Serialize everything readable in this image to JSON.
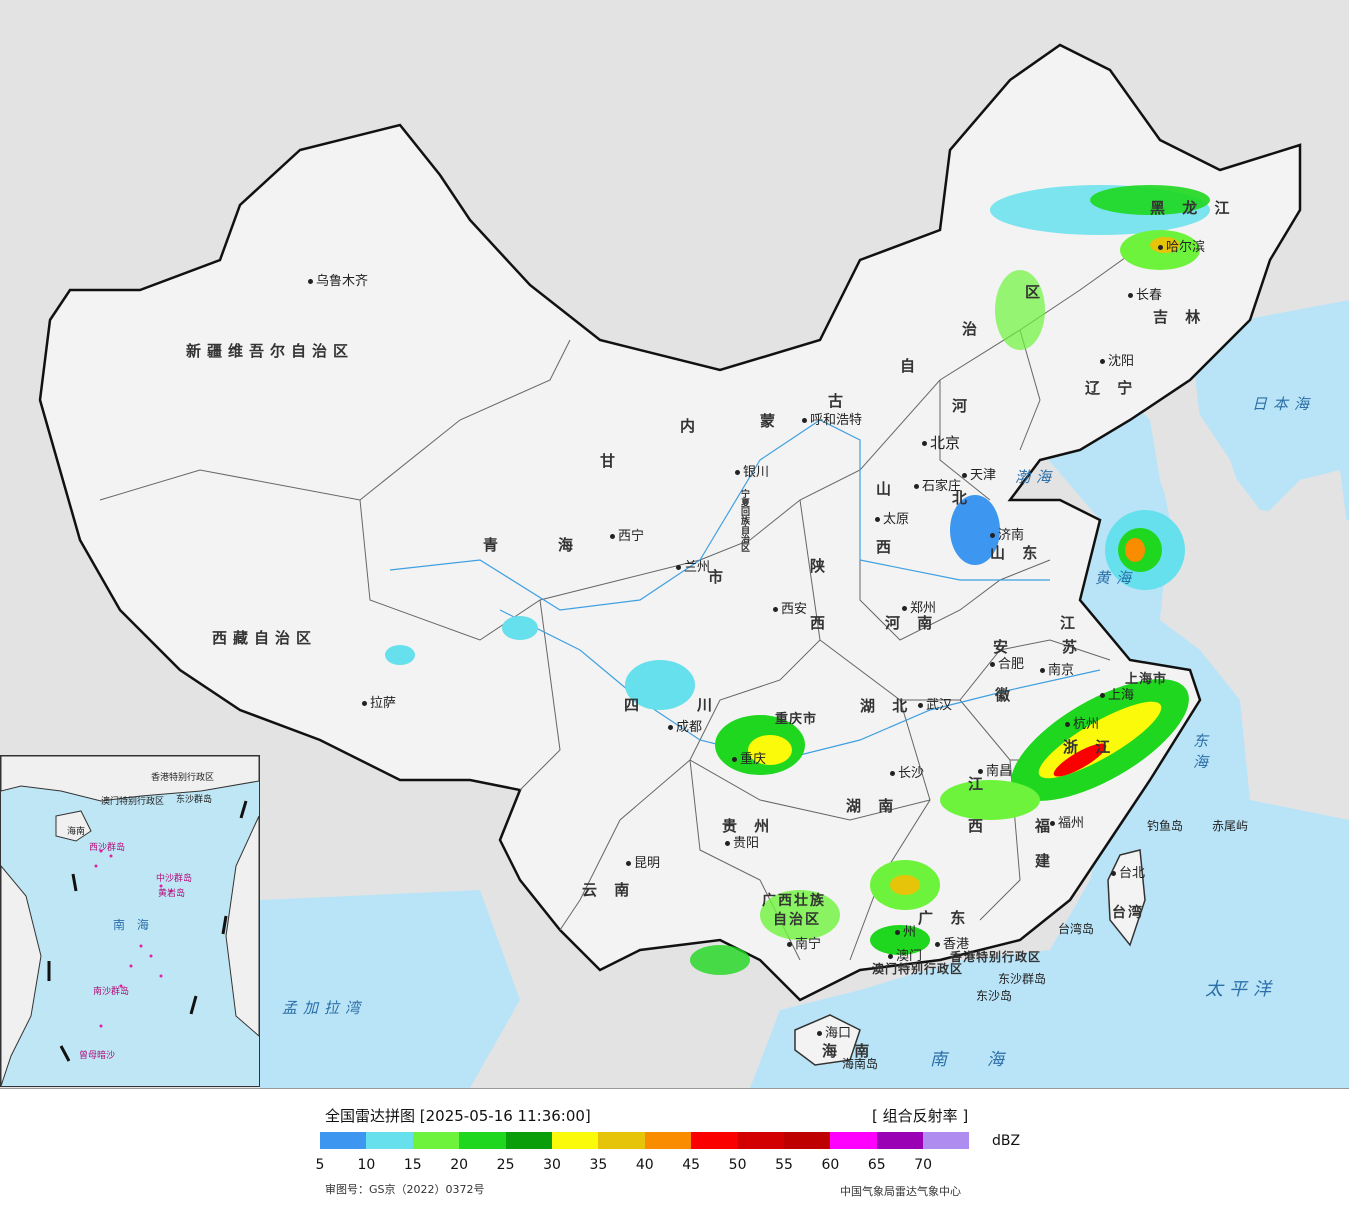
{
  "map": {
    "province_labels": [
      {
        "id": "xinjiang",
        "text": "新疆维吾尔自治区"
      },
      {
        "id": "xizang",
        "text": "西藏自治区"
      },
      {
        "id": "qinghai1",
        "text": "青"
      },
      {
        "id": "qinghai2",
        "text": "海"
      },
      {
        "id": "gansu",
        "text": "甘"
      },
      {
        "id": "neimeng1",
        "text": "内"
      },
      {
        "id": "neimeng2",
        "text": "蒙"
      },
      {
        "id": "neimeng3",
        "text": "古"
      },
      {
        "id": "neimeng4",
        "text": "自"
      },
      {
        "id": "neimeng5",
        "text": "治"
      },
      {
        "id": "neimeng6",
        "text": "区"
      },
      {
        "id": "heilongjiang",
        "text": "黑 龙 江"
      },
      {
        "id": "jilin",
        "text": "吉 林"
      },
      {
        "id": "liaoning",
        "text": "辽 宁"
      },
      {
        "id": "hebei",
        "text": "河"
      },
      {
        "id": "hebei2",
        "text": "北"
      },
      {
        "id": "shanxi",
        "text": "山"
      },
      {
        "id": "shanxi2",
        "text": "西"
      },
      {
        "id": "shandong",
        "text": "山 东"
      },
      {
        "id": "shaanxi",
        "text": "陕"
      },
      {
        "id": "shaanxi2",
        "text": "西"
      },
      {
        "id": "henan",
        "text": "河 南"
      },
      {
        "id": "jiangsu",
        "text": "江"
      },
      {
        "id": "jiangsu2",
        "text": "苏"
      },
      {
        "id": "anhui",
        "text": "安"
      },
      {
        "id": "anhui2",
        "text": "徽"
      },
      {
        "id": "hubei",
        "text": "湖 北"
      },
      {
        "id": "sichuan",
        "text": "四"
      },
      {
        "id": "sichuan2",
        "text": "川"
      },
      {
        "id": "chongqing",
        "text": "重庆市"
      },
      {
        "id": "hunan",
        "text": "湖 南"
      },
      {
        "id": "jiangxi",
        "text": "江"
      },
      {
        "id": "jiangxi2",
        "text": "西"
      },
      {
        "id": "zhejiang",
        "text": "浙 江"
      },
      {
        "id": "fujian",
        "text": "福"
      },
      {
        "id": "fujian2",
        "text": "建"
      },
      {
        "id": "guizhou",
        "text": "贵 州"
      },
      {
        "id": "yunnan",
        "text": "云 南"
      },
      {
        "id": "guangxi",
        "text": "广西壮族"
      },
      {
        "id": "guangxi2",
        "text": "自治区"
      },
      {
        "id": "guangdong",
        "text": "广 东"
      },
      {
        "id": "hainan",
        "text": "海 南"
      },
      {
        "id": "taiwan",
        "text": "台湾"
      },
      {
        "id": "shanghai",
        "text": "上海市"
      },
      {
        "id": "ningxia",
        "text": "宁夏回族自治区"
      },
      {
        "id": "gansu_shi",
        "text": "市"
      },
      {
        "id": "hk",
        "text": "香港特别行政区"
      },
      {
        "id": "macau",
        "text": "澳门特别行政区"
      }
    ],
    "cities": [
      {
        "id": "urumqi",
        "text": "乌鲁木齐"
      },
      {
        "id": "lhasa",
        "text": "拉萨"
      },
      {
        "id": "xining",
        "text": "西宁"
      },
      {
        "id": "lanzhou",
        "text": "兰州"
      },
      {
        "id": "yinchuan",
        "text": "银川"
      },
      {
        "id": "hohhot",
        "text": "呼和浩特"
      },
      {
        "id": "beijing",
        "text": "北京"
      },
      {
        "id": "tianjin",
        "text": "天津"
      },
      {
        "id": "shijiazhuang",
        "text": "石家庄"
      },
      {
        "id": "taiyuan",
        "text": "太原"
      },
      {
        "id": "jinan",
        "text": "济南"
      },
      {
        "id": "xian",
        "text": "西安"
      },
      {
        "id": "zhengzhou",
        "text": "郑州"
      },
      {
        "id": "hefei",
        "text": "合肥"
      },
      {
        "id": "nanjing",
        "text": "南京"
      },
      {
        "id": "shanghai_c",
        "text": "上海"
      },
      {
        "id": "hangzhou",
        "text": "杭州"
      },
      {
        "id": "wuhan",
        "text": "武汉"
      },
      {
        "id": "chengdu",
        "text": "成都"
      },
      {
        "id": "chongqing_c",
        "text": "重庆"
      },
      {
        "id": "changsha",
        "text": "长沙"
      },
      {
        "id": "nanchang",
        "text": "南昌"
      },
      {
        "id": "fuzhou",
        "text": "福州"
      },
      {
        "id": "guiyang",
        "text": "贵阳"
      },
      {
        "id": "kunming",
        "text": "昆明"
      },
      {
        "id": "nanning",
        "text": "南宁"
      },
      {
        "id": "guangzhou",
        "text": "州"
      },
      {
        "id": "hongkong",
        "text": "香港"
      },
      {
        "id": "macao",
        "text": "澳门"
      },
      {
        "id": "haikou",
        "text": "海口"
      },
      {
        "id": "taibei",
        "text": "台北"
      },
      {
        "id": "harbin",
        "text": "哈尔滨"
      },
      {
        "id": "changchun",
        "text": "长春"
      },
      {
        "id": "shenyang",
        "text": "沈阳"
      }
    ],
    "sea_labels": [
      {
        "id": "japan_sea",
        "text": "日本海"
      },
      {
        "id": "bohai",
        "text": "渤海"
      },
      {
        "id": "yellow_sea",
        "text": "黄海"
      },
      {
        "id": "east_sea",
        "text": "东海"
      },
      {
        "id": "pacific",
        "text": "太平洋"
      },
      {
        "id": "south_sea",
        "text": "南海"
      },
      {
        "id": "bengal",
        "text": "孟加拉湾"
      }
    ],
    "islands": [
      {
        "id": "diaoyu",
        "text": "钓鱼岛"
      },
      {
        "id": "chiwei",
        "text": "赤尾屿"
      },
      {
        "id": "taiwan_isl",
        "text": "台湾岛"
      },
      {
        "id": "dongsha",
        "text": "东沙群岛"
      },
      {
        "id": "dongsha2",
        "text": "东沙岛"
      },
      {
        "id": "hainan_isl",
        "text": "海南岛"
      }
    ],
    "inset": {
      "labels": [
        {
          "id": "i_nanhai",
          "text": "南 海"
        },
        {
          "id": "i_hk",
          "text": "香港特别行政区"
        },
        {
          "id": "i_macau",
          "text": "澳门特别行政区"
        },
        {
          "id": "i_dongsha",
          "text": "东沙群岛"
        },
        {
          "id": "i_hainan",
          "text": "海南"
        },
        {
          "id": "i_xisha",
          "text": "西沙群岛"
        },
        {
          "id": "i_zhongsha",
          "text": "中沙群岛"
        },
        {
          "id": "i_huangyan",
          "text": "黄岩岛"
        },
        {
          "id": "i_nansha",
          "text": "南沙群岛"
        },
        {
          "id": "i_zengmu",
          "text": "曾母暗沙"
        }
      ]
    }
  },
  "legend": {
    "title": "全国雷达拼图 [2025-05-16 11:36:00]",
    "product": "[ 组合反射率 ]",
    "unit": "dBZ",
    "colors": [
      "#3d97f0",
      "#66e0ec",
      "#6ef33c",
      "#1ed71e",
      "#0a9e0a",
      "#fafa0a",
      "#e6c40a",
      "#fa8c00",
      "#fa0000",
      "#d20000",
      "#be0000",
      "#ff00ff",
      "#9a00b4",
      "#ae8cf0"
    ],
    "ticks": [
      "5",
      "10",
      "15",
      "20",
      "25",
      "30",
      "35",
      "40",
      "45",
      "50",
      "55",
      "60",
      "65",
      "70"
    ],
    "approval": "审图号：GS京（2022）0372号",
    "source": "中国气象局雷达气象中心"
  }
}
